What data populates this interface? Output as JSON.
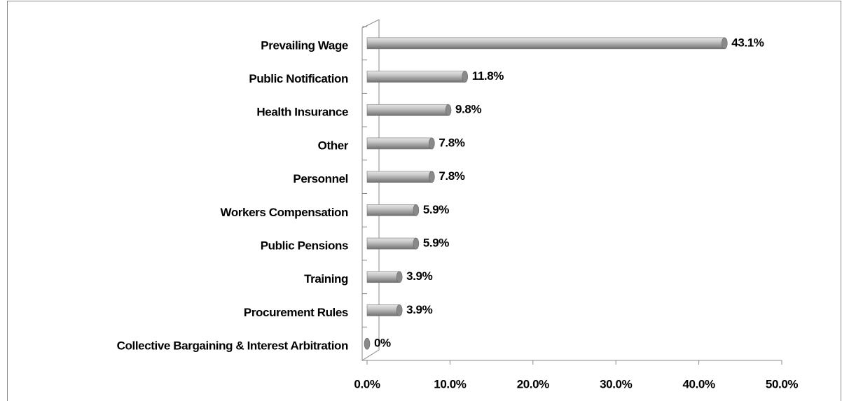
{
  "chart_data": {
    "type": "bar",
    "orientation": "horizontal",
    "categories": [
      "Prevailing Wage",
      "Public Notification",
      "Health Insurance",
      "Other",
      "Personnel",
      "Workers Compensation",
      "Public Pensions",
      "Training",
      "Procurement Rules",
      "Collective Bargaining & Interest Arbitration"
    ],
    "values": [
      43.1,
      11.8,
      9.8,
      7.8,
      7.8,
      5.9,
      5.9,
      3.9,
      3.9,
      0
    ],
    "value_labels": [
      "43.1%",
      "11.8%",
      "9.8%",
      "7.8%",
      "7.8%",
      "5.9%",
      "5.9%",
      "3.9%",
      "3.9%",
      "0%"
    ],
    "color": "#a6a6a6",
    "xlim": [
      0,
      50
    ],
    "xticks": [
      {
        "value": 0,
        "label": "0.0%"
      },
      {
        "value": 10,
        "label": "10.0%"
      },
      {
        "value": 20,
        "label": "20.0%"
      },
      {
        "value": 30,
        "label": "30.0%"
      },
      {
        "value": 40,
        "label": "40.0%"
      },
      {
        "value": 50,
        "label": "50.0%"
      }
    ],
    "grid": false
  }
}
